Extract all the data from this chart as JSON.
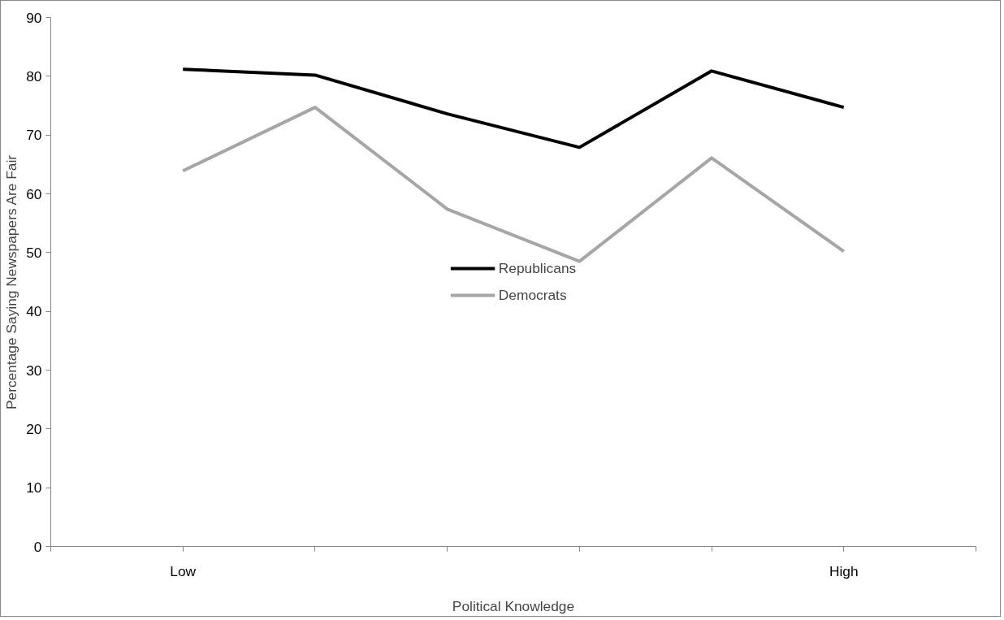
{
  "chart_data": {
    "type": "line",
    "xlabel": "Political Knowledge",
    "ylabel": "Percentage Saying Newspapers Are Fair",
    "categories": [
      "Low",
      null,
      null,
      null,
      null,
      "High"
    ],
    "series": [
      {
        "name": "Republicans",
        "color": "#000000",
        "values": [
          81.2,
          80.2,
          73.6,
          67.9,
          80.9,
          74.7
        ]
      },
      {
        "name": "Democrats",
        "color": "#a6a6a6",
        "values": [
          63.9,
          74.7,
          57.4,
          48.5,
          66.1,
          50.2
        ]
      }
    ],
    "ylim": [
      0,
      90
    ],
    "yticks": [
      0,
      10,
      20,
      30,
      40,
      50,
      60,
      70,
      80,
      90
    ],
    "grid": false,
    "legend": "center",
    "marker": "none",
    "line_style": "solid"
  }
}
